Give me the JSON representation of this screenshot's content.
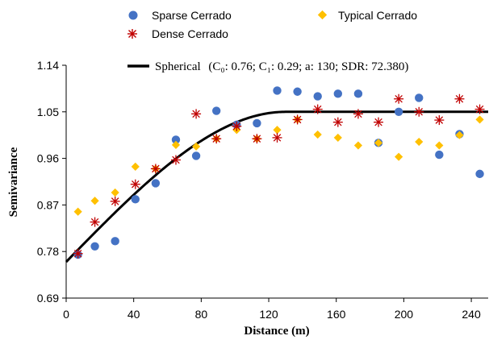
{
  "chart_data": {
    "type": "scatter",
    "xlabel": "Distance (m)",
    "ylabel": "Semivariance",
    "xlim": [
      0,
      250
    ],
    "ylim": [
      0.69,
      1.14
    ],
    "x_ticks": [
      "0",
      "40",
      "80",
      "120",
      "160",
      "200",
      "240"
    ],
    "x_tick_values": [
      0,
      40,
      80,
      120,
      160,
      200,
      240
    ],
    "y_ticks": [
      "0.69",
      "0.78",
      "0.87",
      "0.96",
      "1.05",
      "1.14"
    ],
    "y_tick_values": [
      0.69,
      0.78,
      0.87,
      0.96,
      1.05,
      1.14
    ],
    "grid": false,
    "legend_position": "top",
    "series": [
      {
        "name": "Sparse Cerrado",
        "marker": "circle",
        "color": "#4472C4",
        "x": [
          7,
          17,
          29,
          41,
          53,
          65,
          77,
          89,
          101,
          113,
          125,
          137,
          149,
          161,
          173,
          185,
          197,
          209,
          221,
          233,
          245
        ],
        "y": [
          0.774,
          0.79,
          0.8,
          0.881,
          0.912,
          0.996,
          0.965,
          1.052,
          1.025,
          1.028,
          1.091,
          1.089,
          1.08,
          1.085,
          1.085,
          0.99,
          1.05,
          1.077,
          0.967,
          1.007,
          0.93
        ]
      },
      {
        "name": "Typical Cerrado",
        "marker": "diamond",
        "color": "#FFC000",
        "x": [
          7,
          17,
          29,
          41,
          53,
          65,
          77,
          89,
          101,
          113,
          125,
          137,
          149,
          161,
          173,
          185,
          197,
          209,
          221,
          233,
          245
        ],
        "y": [
          0.857,
          0.878,
          0.894,
          0.944,
          0.94,
          0.986,
          0.983,
          0.998,
          1.015,
          0.998,
          1.015,
          1.035,
          1.006,
          1.0,
          0.985,
          0.99,
          0.963,
          0.992,
          0.985,
          1.005,
          1.035
        ]
      },
      {
        "name": "Dense Cerrado",
        "marker": "asterisk",
        "color": "#C00000",
        "x": [
          7,
          17,
          29,
          41,
          53,
          65,
          77,
          89,
          101,
          113,
          125,
          137,
          149,
          161,
          173,
          185,
          197,
          209,
          221,
          233,
          245
        ],
        "y": [
          0.776,
          0.837,
          0.877,
          0.91,
          0.94,
          0.957,
          1.046,
          0.998,
          1.022,
          0.998,
          1.0,
          1.035,
          1.055,
          1.03,
          1.046,
          1.03,
          1.075,
          1.05,
          1.034,
          1.075,
          1.055
        ]
      }
    ],
    "model": {
      "name": "Spherical",
      "label": "(C₀: 0.76; C₁: 0.29; a: 130; SDR: 72.380)",
      "color": "#000000",
      "c0": 0.76,
      "c1": 0.29,
      "range": 130
    }
  }
}
